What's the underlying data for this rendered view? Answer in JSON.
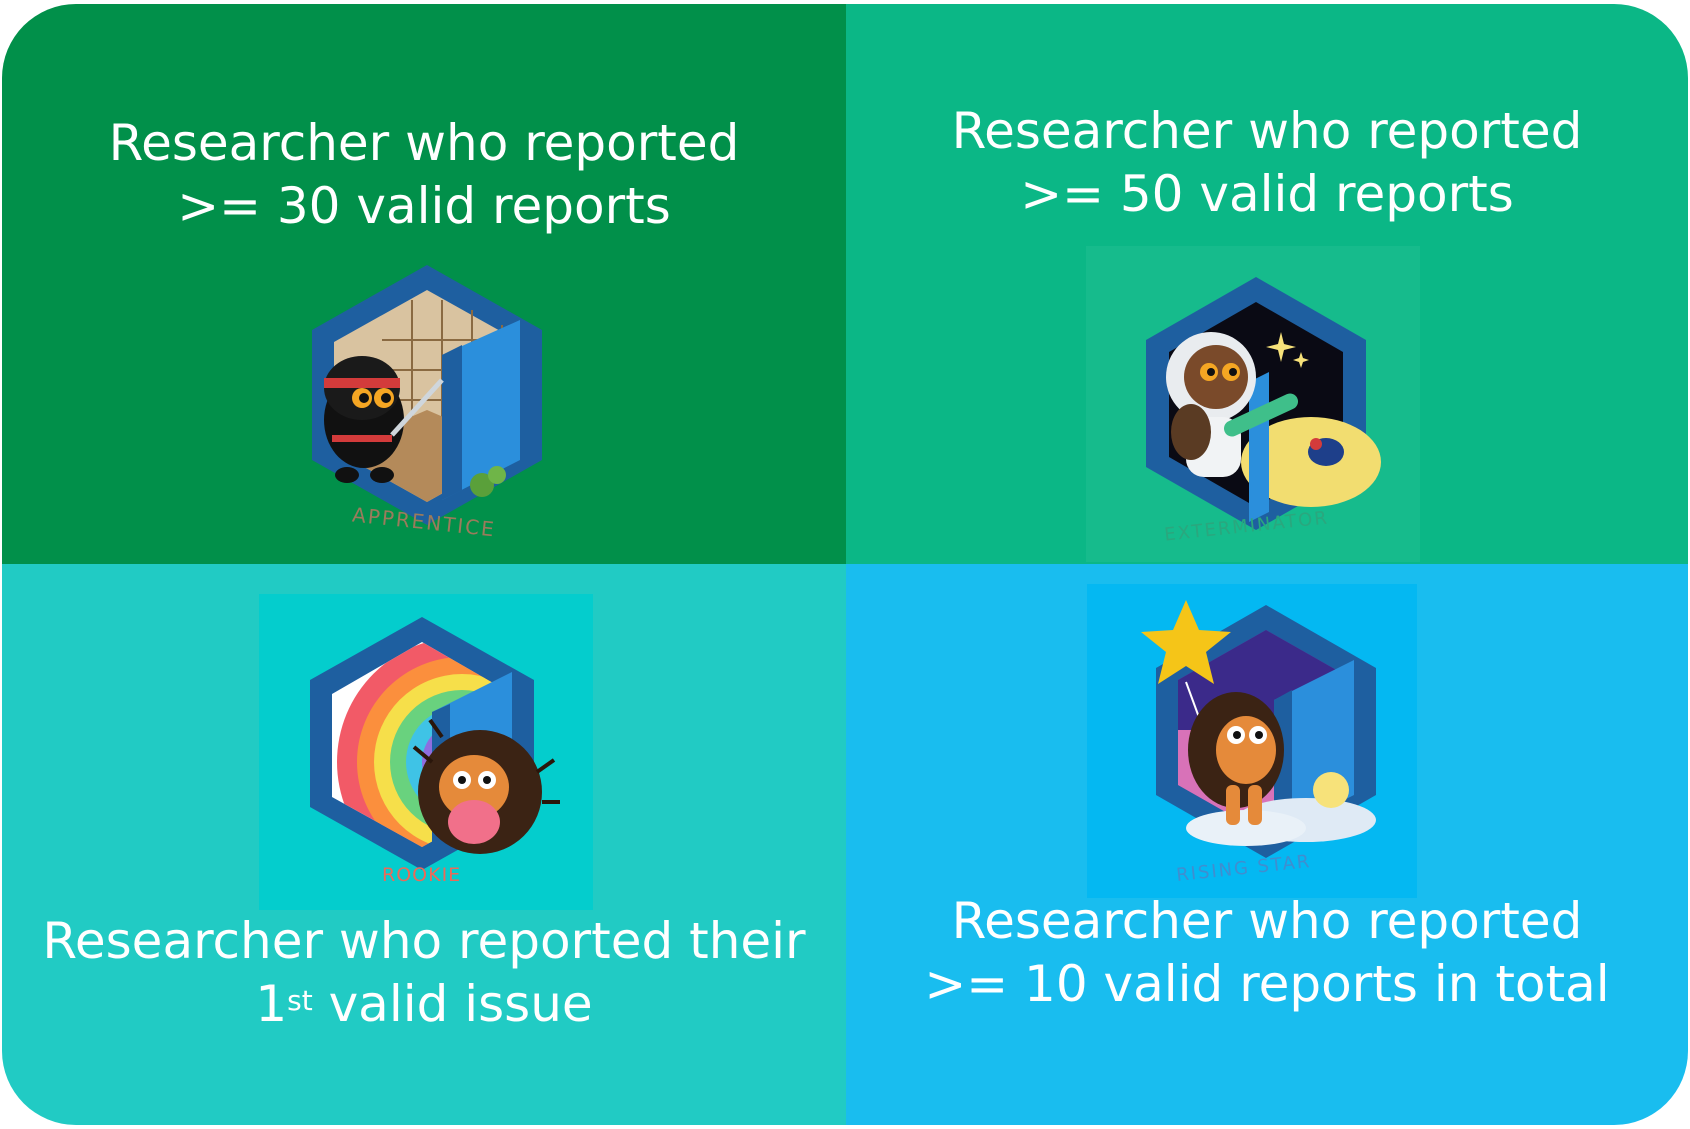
{
  "colors": {
    "top_left": "#01904a",
    "top_right": "#0bb786",
    "bottom_left": "#21cbc4",
    "bottom_right": "#19bdef",
    "badge_dark_blue": "#1e5fa0",
    "badge_light_blue": "#2b8fdc"
  },
  "tiles": {
    "apprentice": {
      "line1": "Researcher who reported",
      "line2": ">= 30 valid reports",
      "badge_label": "APPRENTICE",
      "icon": "ninja-badge-icon"
    },
    "exterminator": {
      "line1": "Researcher who reported",
      "line2": ">= 50 valid reports",
      "badge_label": "EXTERMINATOR",
      "icon": "astronaut-badge-icon"
    },
    "rookie": {
      "line1": "Researcher who reported their",
      "line2_num": "1",
      "line2_sup": "st",
      "line2_rest": " valid issue",
      "badge_label": "ROOKIE",
      "icon": "hedgehog-rainbow-badge-icon"
    },
    "rising_star": {
      "line1": "Researcher who reported",
      "line2": ">= 10 valid reports in total",
      "badge_label": "RISING STAR",
      "icon": "hedgehog-star-badge-icon"
    }
  }
}
